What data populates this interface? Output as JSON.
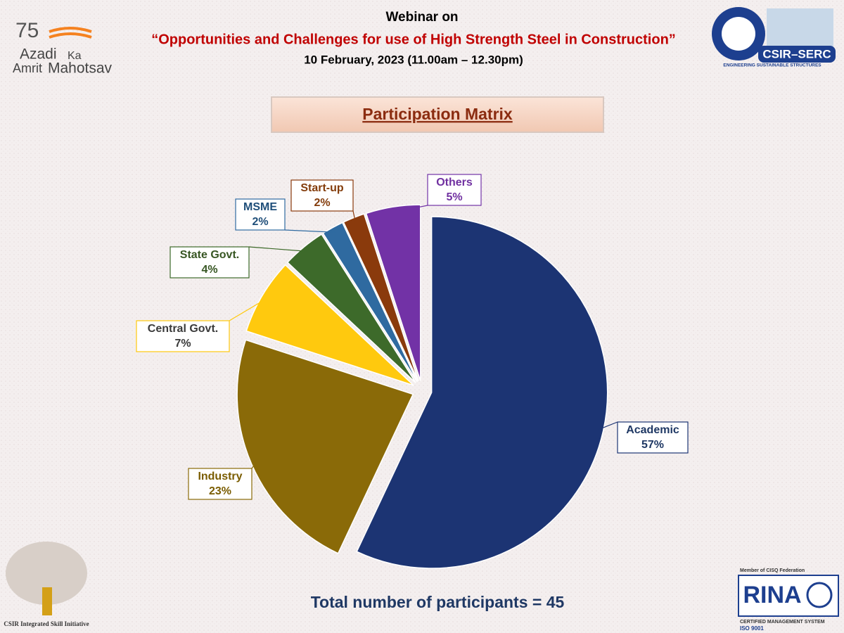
{
  "header": {
    "line1": "Webinar on",
    "title": "“Opportunities and Challenges for use of High Strength Steel in Construction”",
    "date": "10 February, 2023 (11.00am – 12.30pm)"
  },
  "logos": {
    "azadi": "Azadi",
    "ka": "Ka",
    "amrit": "Amrit",
    "mahotsav": "Mahotsav",
    "csir": "CSIR–SERC",
    "csir_tag": "ENGINEERING SUSTAINABLE STRUCTURES",
    "skill": "CSIR Integrated Skill Initiative",
    "cisq": "Member of CISQ Federation",
    "rina": "RINA",
    "cms": "CERTIFIED MANAGEMENT SYSTEM",
    "iso": "ISO 9001"
  },
  "chart_data": {
    "type": "pie",
    "title": "Participation Matrix",
    "categories": [
      "Academic",
      "Industry",
      "Central Govt.",
      "State Govt.",
      "MSME",
      "Start-up",
      "Others"
    ],
    "values": [
      57,
      23,
      7,
      4,
      2,
      2,
      5
    ],
    "value_labels": [
      "57%",
      "23%",
      "7%",
      "4%",
      "2%",
      "2%",
      "5%"
    ],
    "colors": [
      "#1c3473",
      "#8a6a08",
      "#ffc90e",
      "#3d6a2a",
      "#2f6aa0",
      "#8a3a0c",
      "#7232a6"
    ]
  },
  "footer": "Total number of participants = 45"
}
